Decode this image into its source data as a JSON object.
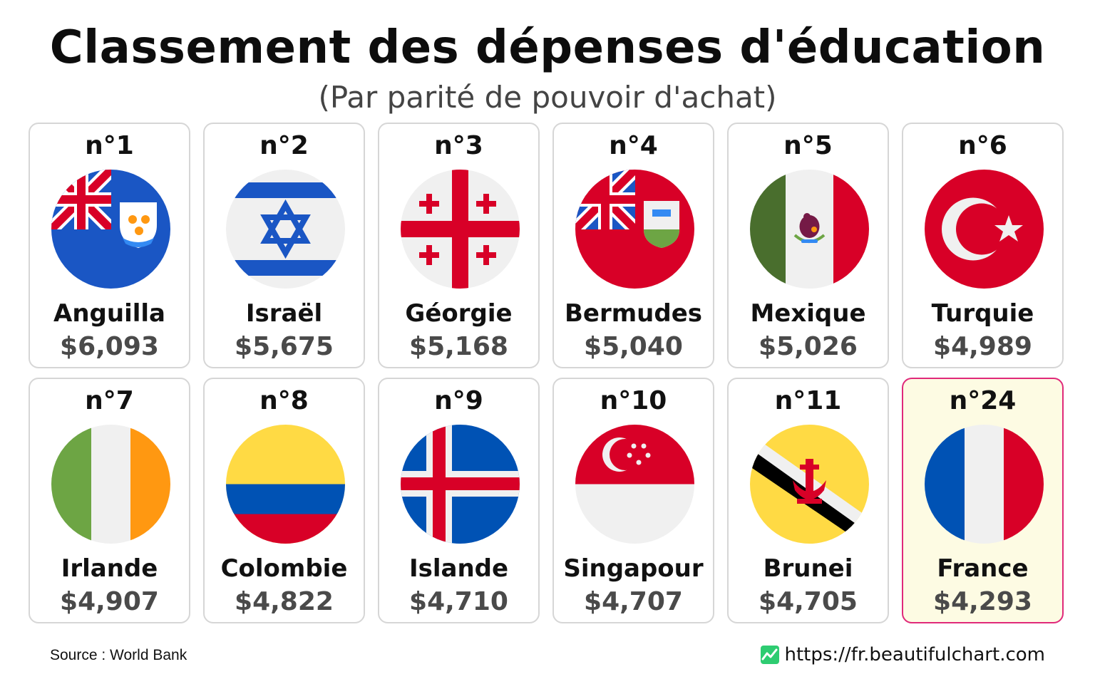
{
  "header": {
    "title": "Classement des dépenses d'éducation",
    "subtitle": "(Par parité de pouvoir d'achat)"
  },
  "chart_data": {
    "type": "table",
    "title": "Classement des dépenses d'éducation",
    "subtitle": "(Par parité de pouvoir d'achat)",
    "rows": [
      {
        "rank": "n°1",
        "country": "Anguilla",
        "value_label": "$6,093",
        "value": 6093,
        "flag": "anguilla-flag"
      },
      {
        "rank": "n°2",
        "country": "Israël",
        "value_label": "$5,675",
        "value": 5675,
        "flag": "israel-flag"
      },
      {
        "rank": "n°3",
        "country": "Géorgie",
        "value_label": "$5,168",
        "value": 5168,
        "flag": "georgia-flag"
      },
      {
        "rank": "n°4",
        "country": "Bermudes",
        "value_label": "$5,040",
        "value": 5040,
        "flag": "bermuda-flag"
      },
      {
        "rank": "n°5",
        "country": "Mexique",
        "value_label": "$5,026",
        "value": 5026,
        "flag": "mexico-flag"
      },
      {
        "rank": "n°6",
        "country": "Turquie",
        "value_label": "$4,989",
        "value": 4989,
        "flag": "turkey-flag"
      },
      {
        "rank": "n°7",
        "country": "Irlande",
        "value_label": "$4,907",
        "value": 4907,
        "flag": "ireland-flag"
      },
      {
        "rank": "n°8",
        "country": "Colombie",
        "value_label": "$4,822",
        "value": 4822,
        "flag": "colombia-flag"
      },
      {
        "rank": "n°9",
        "country": "Islande",
        "value_label": "$4,710",
        "value": 4710,
        "flag": "iceland-flag"
      },
      {
        "rank": "n°10",
        "country": "Singapour",
        "value_label": "$4,707",
        "value": 4707,
        "flag": "singapore-flag"
      },
      {
        "rank": "n°11",
        "country": "Brunei",
        "value_label": "$4,705",
        "value": 4705,
        "flag": "brunei-flag"
      },
      {
        "rank": "n°24",
        "country": "France",
        "value_label": "$4,293",
        "value": 4293,
        "flag": "france-flag",
        "highlighted": true
      }
    ],
    "colors": {
      "highlight_border": "#e0297a",
      "highlight_fill": "#fdfbe3",
      "card_border": "#d6d6d6"
    }
  },
  "footer": {
    "source": "Source : World Bank",
    "website": "https://fr.beautifulchart.com"
  }
}
